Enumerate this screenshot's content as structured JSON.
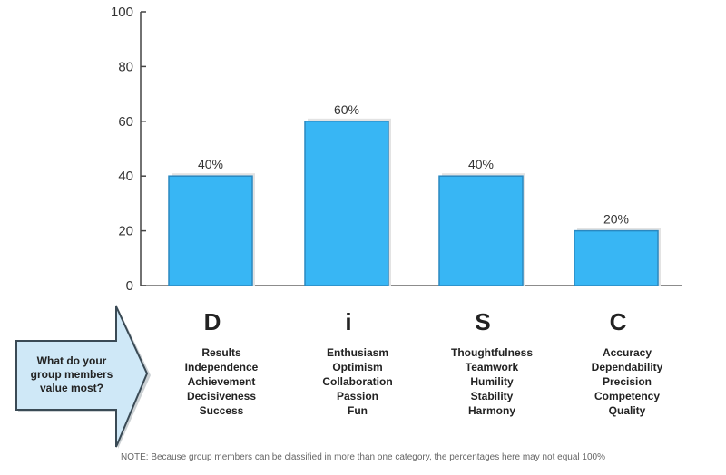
{
  "chart_data": {
    "type": "bar",
    "categories": [
      "D",
      "i",
      "S",
      "C"
    ],
    "values": [
      40,
      60,
      40,
      20
    ],
    "value_labels": [
      "40%",
      "60%",
      "40%",
      "20%"
    ],
    "ylim": [
      0,
      100
    ],
    "yticks": [
      0,
      20,
      40,
      60,
      80,
      100
    ],
    "bar_color": "#38b6f4",
    "bar_edge_color": "#2a88c0",
    "traits": [
      [
        "Results",
        "Independence",
        "Achievement",
        "Decisiveness",
        "Success"
      ],
      [
        "Enthusiasm",
        "Optimism",
        "Collaboration",
        "Passion",
        "Fun"
      ],
      [
        "Thoughtfulness",
        "Teamwork",
        "Humility",
        "Stability",
        "Harmony"
      ],
      [
        "Accuracy",
        "Dependability",
        "Precision",
        "Competency",
        "Quality"
      ]
    ]
  },
  "callout": {
    "lines": [
      "What do your",
      "group members",
      "value most?"
    ],
    "fill_color": "#cfe8f7",
    "border_color": "#3a4a55"
  },
  "note": "NOTE: Because group members can be classified in more than one category, the percentages here may not equal 100%"
}
